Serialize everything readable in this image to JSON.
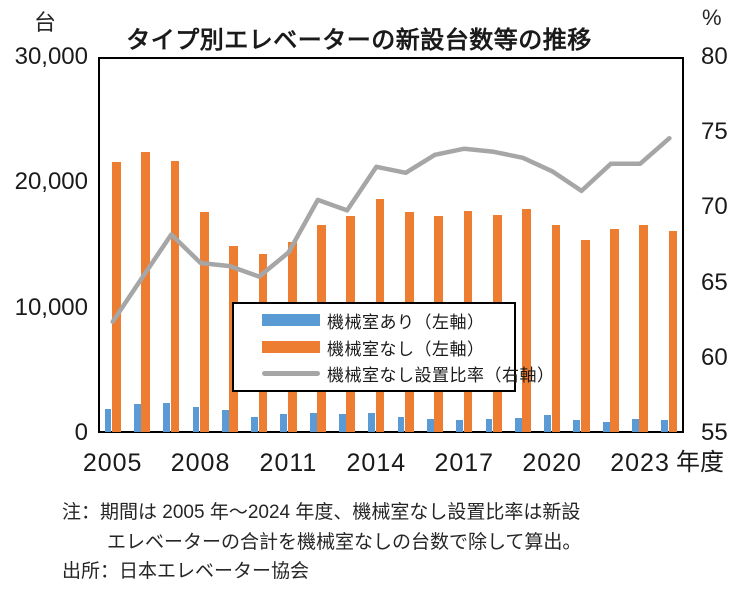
{
  "title": "タイプ別エレベーターの新設台数等の推移",
  "left_axis": {
    "unit": "台",
    "ticks": [
      "30,000",
      "20,000",
      "10,000",
      "0"
    ]
  },
  "right_axis": {
    "unit": "%",
    "ticks": [
      "80",
      "75",
      "70",
      "65",
      "60",
      "55"
    ]
  },
  "x_axis": {
    "tick_labels": [
      "2005",
      "2008",
      "2011",
      "2014",
      "2017",
      "2020",
      "2023"
    ],
    "unit_label": "年度"
  },
  "legend": [
    {
      "label": "機械室あり（左軸）",
      "swatch": "bar",
      "color": "#5B9BD5"
    },
    {
      "label": "機械室なし（左軸）",
      "swatch": "bar",
      "color": "#ED7D31"
    },
    {
      "label": "機械室なし設置比率（右軸）",
      "swatch": "line",
      "color": "#A6A6A6"
    }
  ],
  "notes": {
    "line1": "注：期間は 2005 年～2024 年度、機械室なし設置比率は新設",
    "line2": "エレベーターの合計を機械室なしの台数で除して算出。",
    "line3": "出所：日本エレベーター協会"
  },
  "chart_data": {
    "type": "bar",
    "subtype": "bar+line combo, dual axis",
    "x": [
      2005,
      2006,
      2007,
      2008,
      2009,
      2010,
      2011,
      2012,
      2013,
      2014,
      2015,
      2016,
      2017,
      2018,
      2019,
      2020,
      2021,
      2022,
      2023,
      2024
    ],
    "series": [
      {
        "name": "機械室あり（左軸）",
        "type": "bar",
        "axis": "left",
        "color": "#5B9BD5",
        "values": [
          1900,
          2300,
          2400,
          2100,
          1800,
          1300,
          1500,
          1600,
          1500,
          1600,
          1250,
          1100,
          1050,
          1100,
          1200,
          1450,
          1050,
          900,
          1100,
          1000
        ]
      },
      {
        "name": "機械室なし（左軸）",
        "type": "bar",
        "axis": "left",
        "color": "#ED7D31",
        "values": [
          21600,
          22400,
          21700,
          17600,
          14900,
          14300,
          15200,
          16600,
          17300,
          18700,
          17600,
          17300,
          17700,
          17400,
          17900,
          16600,
          15400,
          16300,
          16600,
          16100
        ]
      },
      {
        "name": "機械室なし設置比率（右軸）",
        "type": "line",
        "axis": "right",
        "color": "#A6A6A6",
        "values": [
          62.4,
          65.3,
          68.2,
          66.3,
          66.1,
          65.4,
          67.0,
          70.5,
          69.8,
          72.7,
          72.3,
          73.5,
          73.9,
          73.7,
          73.3,
          72.4,
          71.1,
          72.9,
          72.9,
          74.6
        ]
      }
    ],
    "left_ylim": [
      0,
      30000
    ],
    "right_ylim": [
      55,
      80
    ],
    "grid": false,
    "legend_position": "inside lower-center"
  }
}
